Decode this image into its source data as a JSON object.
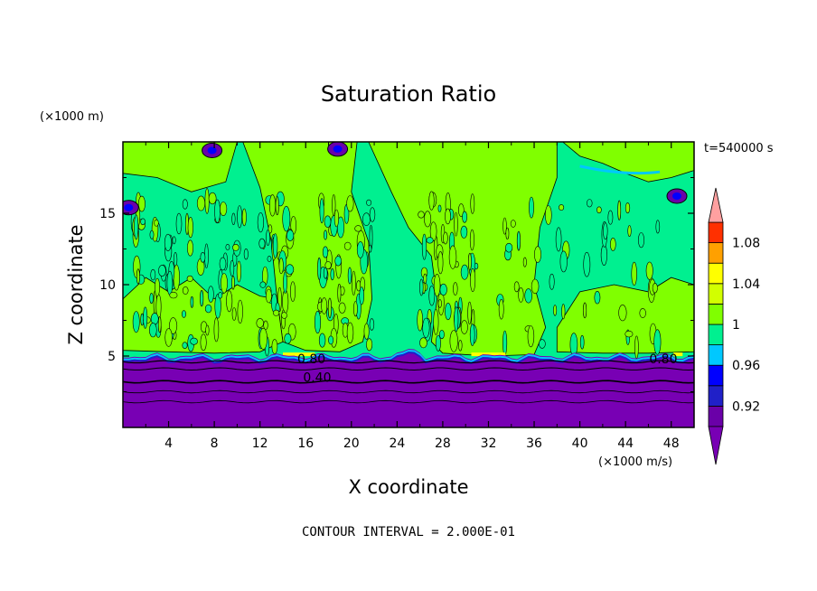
{
  "chart_data": {
    "type": "heatmap",
    "subtype": "filled-contour",
    "title": "Saturation Ratio",
    "xlabel": "X coordinate",
    "ylabel": "Z coordinate",
    "x_unit": "(×1000 m/s)",
    "y_unit": "(×1000 m)",
    "time_label": "t=540000 s",
    "footer": "CONTOUR INTERVAL = 2.000E-01",
    "xlim": [
      0,
      50
    ],
    "ylim": [
      0,
      20
    ],
    "x_ticks": [
      4,
      8,
      12,
      16,
      20,
      24,
      28,
      32,
      36,
      40,
      44,
      48
    ],
    "y_ticks": [
      5,
      10,
      15
    ],
    "contour_labels": [
      {
        "text": "0.80",
        "x": 16.5,
        "z": 4.5
      },
      {
        "text": "0.40",
        "x": 17.0,
        "z": 3.2
      },
      {
        "text": "0.80",
        "x": 47.3,
        "z": 4.5
      }
    ],
    "colorbar": {
      "levels": [
        0.9,
        0.92,
        0.94,
        0.96,
        0.98,
        1.0,
        1.02,
        1.04,
        1.06,
        1.08,
        1.1
      ],
      "labels": [
        "0.92",
        "0.96",
        "1",
        "1.04",
        "1.08"
      ],
      "label_values": [
        0.92,
        0.96,
        1.0,
        1.04,
        1.08
      ],
      "colors": [
        "#6a00a8",
        "#2020c8",
        "#0000ff",
        "#00c8ff",
        "#00f090",
        "#80ff00",
        "#d2ff00",
        "#ffff00",
        "#ffa000",
        "#ff3000"
      ],
      "under_color": "#7800b4",
      "over_color": "#ffa0a0"
    },
    "regions": {
      "lower_layer_top_z": 5.0,
      "lower_layer_color": "#7800b4",
      "mid_color": "#00f090",
      "upper_color": "#80ff00"
    }
  }
}
